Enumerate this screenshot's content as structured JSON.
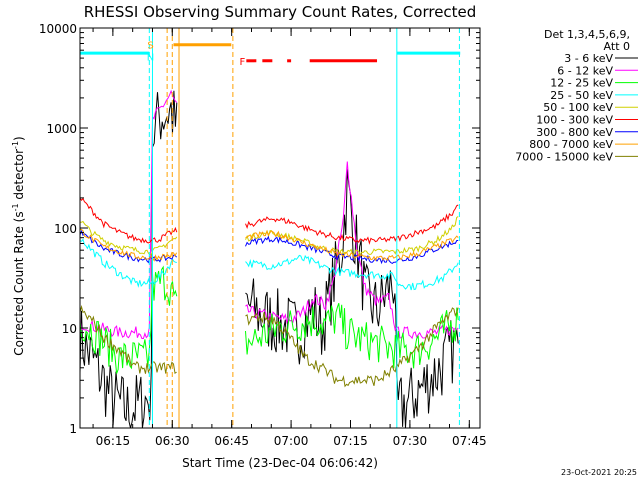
{
  "chart_data": {
    "type": "line",
    "title": "RHESSI Observing Summary Count Rates, Corrected",
    "xlabel": "Start Time (23-Dec-04 06:06:42)",
    "ylabel": "Corrected Count Rate (s⁻¹ detector⁻¹)",
    "ylabel_main": "Corrected Count Rate (s",
    "ylabel_sup1": "-1",
    "ylabel_mid": " detector",
    "ylabel_sup2": "-1",
    "ylabel_end": ")",
    "yscale": "log",
    "ylim": [
      1,
      10000
    ],
    "xlim_minutes": [
      0,
      101
    ],
    "x_start_label": "06:06:42",
    "x_ticks": [
      {
        "t": 8.3,
        "label": "06:15"
      },
      {
        "t": 23.3,
        "label": "06:30"
      },
      {
        "t": 38.3,
        "label": "06:45"
      },
      {
        "t": 53.3,
        "label": "07:00"
      },
      {
        "t": 68.3,
        "label": "07:15"
      },
      {
        "t": 83.3,
        "label": "07:30"
      },
      {
        "t": 98.3,
        "label": "07:45"
      }
    ],
    "y_ticks": [
      {
        "v": 1,
        "label": "1"
      },
      {
        "v": 10,
        "label": "10"
      },
      {
        "v": 100,
        "label": "100"
      },
      {
        "v": 1000,
        "label": "1000"
      },
      {
        "v": 10000,
        "label": "10000"
      }
    ],
    "legend_header": [
      "Det 1,3,4,5,6,9,",
      "Att 0"
    ],
    "series": [
      {
        "name": "3 - 6 keV",
        "color": "#000000",
        "noise": 0.35,
        "points": [
          [
            0,
            8
          ],
          [
            3,
            5
          ],
          [
            8,
            2
          ],
          [
            12,
            1.5
          ],
          [
            18,
            2
          ],
          [
            18.3,
            800
          ],
          [
            20,
            1300
          ],
          [
            23,
            1500
          ],
          [
            24.8,
            900
          ],
          [
            25,
            null
          ],
          [
            41.8,
            18
          ],
          [
            45,
            14
          ],
          [
            48,
            12
          ],
          [
            53,
            10
          ],
          [
            55,
            9
          ],
          [
            57,
            12
          ],
          [
            59,
            15
          ],
          [
            61,
            10
          ],
          [
            63,
            20
          ],
          [
            66,
            60
          ],
          [
            67.5,
            250
          ],
          [
            69,
            100
          ],
          [
            71,
            40
          ],
          [
            72,
            20
          ],
          [
            75,
            15
          ],
          [
            78,
            25
          ],
          [
            79.5,
            30
          ],
          [
            80,
            1.5
          ],
          [
            84,
            2
          ],
          [
            88,
            3
          ],
          [
            91,
            4
          ],
          [
            94,
            6
          ],
          [
            95.5,
            7
          ]
        ]
      },
      {
        "name": "6 - 12 keV",
        "color": "#ff00ff",
        "noise": 0.06,
        "points": [
          [
            0,
            11
          ],
          [
            5,
            10
          ],
          [
            10,
            9
          ],
          [
            17.5,
            9
          ],
          [
            18.3,
            1200
          ],
          [
            21,
            1700
          ],
          [
            23,
            2200
          ],
          [
            24.8,
            1500
          ],
          [
            25,
            null
          ],
          [
            41.8,
            15
          ],
          [
            48,
            13
          ],
          [
            53,
            12
          ],
          [
            56,
            14
          ],
          [
            59,
            20
          ],
          [
            62,
            17
          ],
          [
            64,
            30
          ],
          [
            66.5,
            120
          ],
          [
            67.5,
            450
          ],
          [
            68.5,
            200
          ],
          [
            70,
            60
          ],
          [
            72,
            25
          ],
          [
            75,
            18
          ],
          [
            78,
            20
          ],
          [
            80,
            9
          ],
          [
            85,
            9
          ],
          [
            90,
            9
          ],
          [
            95.5,
            10
          ]
        ]
      },
      {
        "name": "12 - 25 keV",
        "color": "#00ff00",
        "noise": 0.2,
        "points": [
          [
            0,
            12
          ],
          [
            5,
            8
          ],
          [
            10,
            5
          ],
          [
            17.5,
            5
          ],
          [
            18.3,
            25
          ],
          [
            21,
            30
          ],
          [
            23,
            25
          ],
          [
            24.8,
            13
          ],
          [
            25,
            null
          ],
          [
            41.8,
            7
          ],
          [
            45,
            8
          ],
          [
            50,
            10
          ],
          [
            55,
            11
          ],
          [
            58,
            12
          ],
          [
            60,
            12
          ],
          [
            62,
            11
          ],
          [
            65,
            13
          ],
          [
            67.5,
            9
          ],
          [
            70,
            8
          ],
          [
            75,
            7
          ],
          [
            80,
            6
          ],
          [
            85,
            6
          ],
          [
            90,
            8
          ],
          [
            95.5,
            12
          ]
        ]
      },
      {
        "name": "25 - 50 keV",
        "color": "#00ffff",
        "noise": 0.04,
        "points": [
          [
            0,
            80
          ],
          [
            3,
            60
          ],
          [
            6,
            45
          ],
          [
            10,
            35
          ],
          [
            14,
            28
          ],
          [
            18,
            28
          ],
          [
            21,
            35
          ],
          [
            23,
            45
          ],
          [
            24.8,
            50
          ],
          [
            25,
            null
          ],
          [
            41.8,
            45
          ],
          [
            45,
            43
          ],
          [
            48,
            42
          ],
          [
            52,
            45
          ],
          [
            55,
            50
          ],
          [
            58,
            47
          ],
          [
            62,
            40
          ],
          [
            66,
            36
          ],
          [
            70,
            35
          ],
          [
            75,
            34
          ],
          [
            79.5,
            33
          ],
          [
            80,
            28
          ],
          [
            84,
            26
          ],
          [
            88,
            28
          ],
          [
            92,
            32
          ],
          [
            95.5,
            45
          ]
        ]
      },
      {
        "name": "50 - 100 keV",
        "color": "#d0d000",
        "noise": 0.03,
        "points": [
          [
            0,
            120
          ],
          [
            3,
            90
          ],
          [
            6,
            75
          ],
          [
            10,
            65
          ],
          [
            14,
            60
          ],
          [
            18,
            58
          ],
          [
            20,
            62
          ],
          [
            23,
            75
          ],
          [
            24.8,
            80
          ],
          [
            25,
            null
          ],
          [
            41.8,
            78
          ],
          [
            45,
            85
          ],
          [
            48,
            90
          ],
          [
            52,
            83
          ],
          [
            56,
            75
          ],
          [
            60,
            65
          ],
          [
            65,
            58
          ],
          [
            70,
            57
          ],
          [
            75,
            58
          ],
          [
            80,
            58
          ],
          [
            85,
            62
          ],
          [
            90,
            75
          ],
          [
            94,
            100
          ],
          [
            95.5,
            130
          ]
        ]
      },
      {
        "name": "100 - 300 keV",
        "color": "#ff0000",
        "noise": 0.03,
        "points": [
          [
            0,
            200
          ],
          [
            3,
            150
          ],
          [
            6,
            110
          ],
          [
            10,
            90
          ],
          [
            14,
            78
          ],
          [
            18,
            75
          ],
          [
            20,
            77
          ],
          [
            23,
            90
          ],
          [
            24.8,
            95
          ],
          [
            25,
            null
          ],
          [
            41.8,
            105
          ],
          [
            45,
            115
          ],
          [
            49,
            125
          ],
          [
            53,
            115
          ],
          [
            57,
            100
          ],
          [
            61,
            88
          ],
          [
            65,
            80
          ],
          [
            70,
            75
          ],
          [
            75,
            75
          ],
          [
            80,
            78
          ],
          [
            85,
            90
          ],
          [
            90,
            105
          ],
          [
            94,
            140
          ],
          [
            95.5,
            170
          ]
        ]
      },
      {
        "name": "300 - 800 keV",
        "color": "#0000ff",
        "noise": 0.03,
        "points": [
          [
            0,
            90
          ],
          [
            3,
            75
          ],
          [
            6,
            62
          ],
          [
            10,
            55
          ],
          [
            14,
            50
          ],
          [
            18,
            48
          ],
          [
            22,
            50
          ],
          [
            24.8,
            52
          ],
          [
            25,
            null
          ],
          [
            41.8,
            70
          ],
          [
            45,
            75
          ],
          [
            49,
            78
          ],
          [
            53,
            72
          ],
          [
            57,
            65
          ],
          [
            61,
            58
          ],
          [
            65,
            52
          ],
          [
            70,
            50
          ],
          [
            75,
            48
          ],
          [
            80,
            47
          ],
          [
            85,
            52
          ],
          [
            90,
            62
          ],
          [
            95.5,
            75
          ]
        ]
      },
      {
        "name": "800 - 7000 keV",
        "color": "#ffa000",
        "noise": 0.03,
        "points": [
          [
            0,
            95
          ],
          [
            3,
            78
          ],
          [
            6,
            65
          ],
          [
            10,
            58
          ],
          [
            14,
            52
          ],
          [
            18,
            50
          ],
          [
            22,
            53
          ],
          [
            24.8,
            55
          ],
          [
            25,
            null
          ],
          [
            41.8,
            80
          ],
          [
            45,
            85
          ],
          [
            49,
            88
          ],
          [
            53,
            80
          ],
          [
            57,
            70
          ],
          [
            61,
            62
          ],
          [
            65,
            55
          ],
          [
            70,
            52
          ],
          [
            75,
            50
          ],
          [
            80,
            50
          ],
          [
            85,
            55
          ],
          [
            90,
            65
          ],
          [
            95.5,
            80
          ]
        ]
      },
      {
        "name": "7000 - 15000 keV",
        "color": "#808000",
        "noise": 0.06,
        "points": [
          [
            0,
            15
          ],
          [
            3,
            12
          ],
          [
            6,
            8
          ],
          [
            10,
            6
          ],
          [
            14,
            4
          ],
          [
            18,
            4
          ],
          [
            22,
            4
          ],
          [
            24.8,
            4
          ],
          [
            25,
            null
          ],
          [
            41.8,
            12
          ],
          [
            45,
            13
          ],
          [
            49,
            12
          ],
          [
            53,
            8
          ],
          [
            57,
            5
          ],
          [
            61,
            4
          ],
          [
            65,
            3
          ],
          [
            70,
            3
          ],
          [
            75,
            3
          ],
          [
            80,
            4
          ],
          [
            85,
            6
          ],
          [
            90,
            10
          ],
          [
            95.5,
            16
          ]
        ]
      }
    ],
    "flags": [
      {
        "label": "S",
        "color": "#ffa000",
        "t": 17.8,
        "y": 6800
      },
      {
        "label": "N",
        "color": "#00ffff",
        "t": 17.8,
        "y": 5200
      },
      {
        "label": "F",
        "color": "#ff0000",
        "t": 41.0,
        "y": 4700
      }
    ],
    "flag_segments": [
      {
        "color": "#00ffff",
        "t0": 0,
        "t1": 17.5,
        "y": 5600,
        "dash": false
      },
      {
        "color": "#00ffff",
        "t0": 80,
        "t1": 96,
        "y": 5600,
        "dash": false
      },
      {
        "color": "#ffa000",
        "t0": 23.6,
        "t1": 38.2,
        "y": 6800,
        "dash": false
      },
      {
        "color": "#ff0000",
        "t0": 42,
        "t1": 50,
        "y": 4700,
        "dash": true
      },
      {
        "color": "#ff0000",
        "t0": 52.3,
        "t1": 53.3,
        "y": 4700,
        "dash": false
      },
      {
        "color": "#ff0000",
        "t0": 58,
        "t1": 75,
        "y": 4700,
        "dash": false
      }
    ],
    "vlines": [
      {
        "t": 0,
        "color": "#00ffff",
        "dash": true
      },
      {
        "t": 17.5,
        "color": "#00ffff",
        "dash": true
      },
      {
        "t": 18.3,
        "color": "#00ffff",
        "dash": false
      },
      {
        "t": 22.0,
        "color": "#ffa000",
        "dash": true
      },
      {
        "t": 23.3,
        "color": "#ffa000",
        "dash": true
      },
      {
        "t": 25.0,
        "color": "#ffa000",
        "dash": false
      },
      {
        "t": 38.6,
        "color": "#ffa000",
        "dash": true
      },
      {
        "t": 80.0,
        "color": "#00ffff",
        "dash": false
      },
      {
        "t": 95.8,
        "color": "#00ffff",
        "dash": true
      }
    ]
  },
  "footer_timestamp": "23-Oct-2021 20:25"
}
